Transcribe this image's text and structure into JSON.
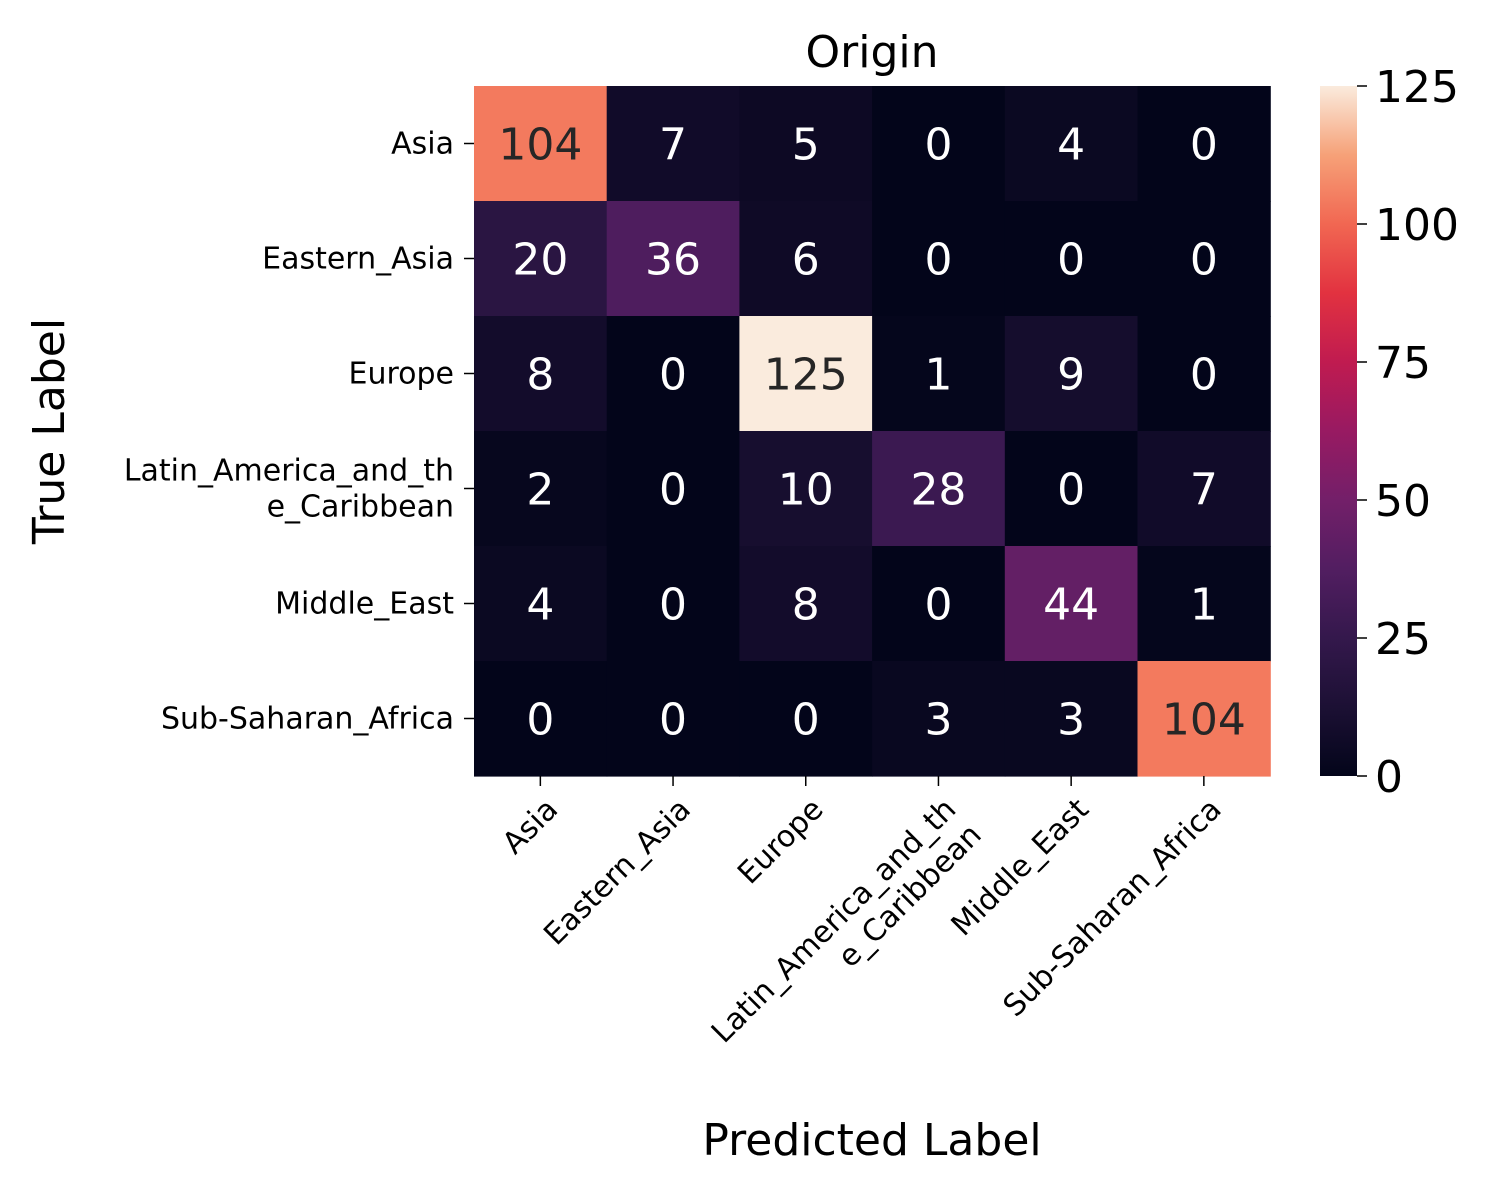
{
  "chart_data": {
    "type": "heatmap",
    "title": "Origin",
    "xlabel": "Predicted Label",
    "ylabel": "True Label",
    "x_categories": [
      "Asia",
      "Eastern_Asia",
      "Europe",
      "Latin_America_and_th\ne_Caribbean",
      "Middle_East",
      "Sub-Saharan_Africa"
    ],
    "y_categories": [
      "Asia",
      "Eastern_Asia",
      "Europe",
      "Latin_America_and_th\ne_Caribbean",
      "Middle_East",
      "Sub-Saharan_Africa"
    ],
    "values": [
      [
        104,
        7,
        5,
        0,
        4,
        0
      ],
      [
        20,
        36,
        6,
        0,
        0,
        0
      ],
      [
        8,
        0,
        125,
        1,
        9,
        0
      ],
      [
        2,
        0,
        10,
        28,
        0,
        7
      ],
      [
        4,
        0,
        8,
        0,
        44,
        1
      ],
      [
        0,
        0,
        0,
        3,
        3,
        104
      ]
    ],
    "colorbar": {
      "min": 0,
      "max": 125,
      "ticks": [
        0,
        25,
        50,
        75,
        100,
        125
      ],
      "colormap": "rocket",
      "position": "right"
    },
    "grid": false
  }
}
